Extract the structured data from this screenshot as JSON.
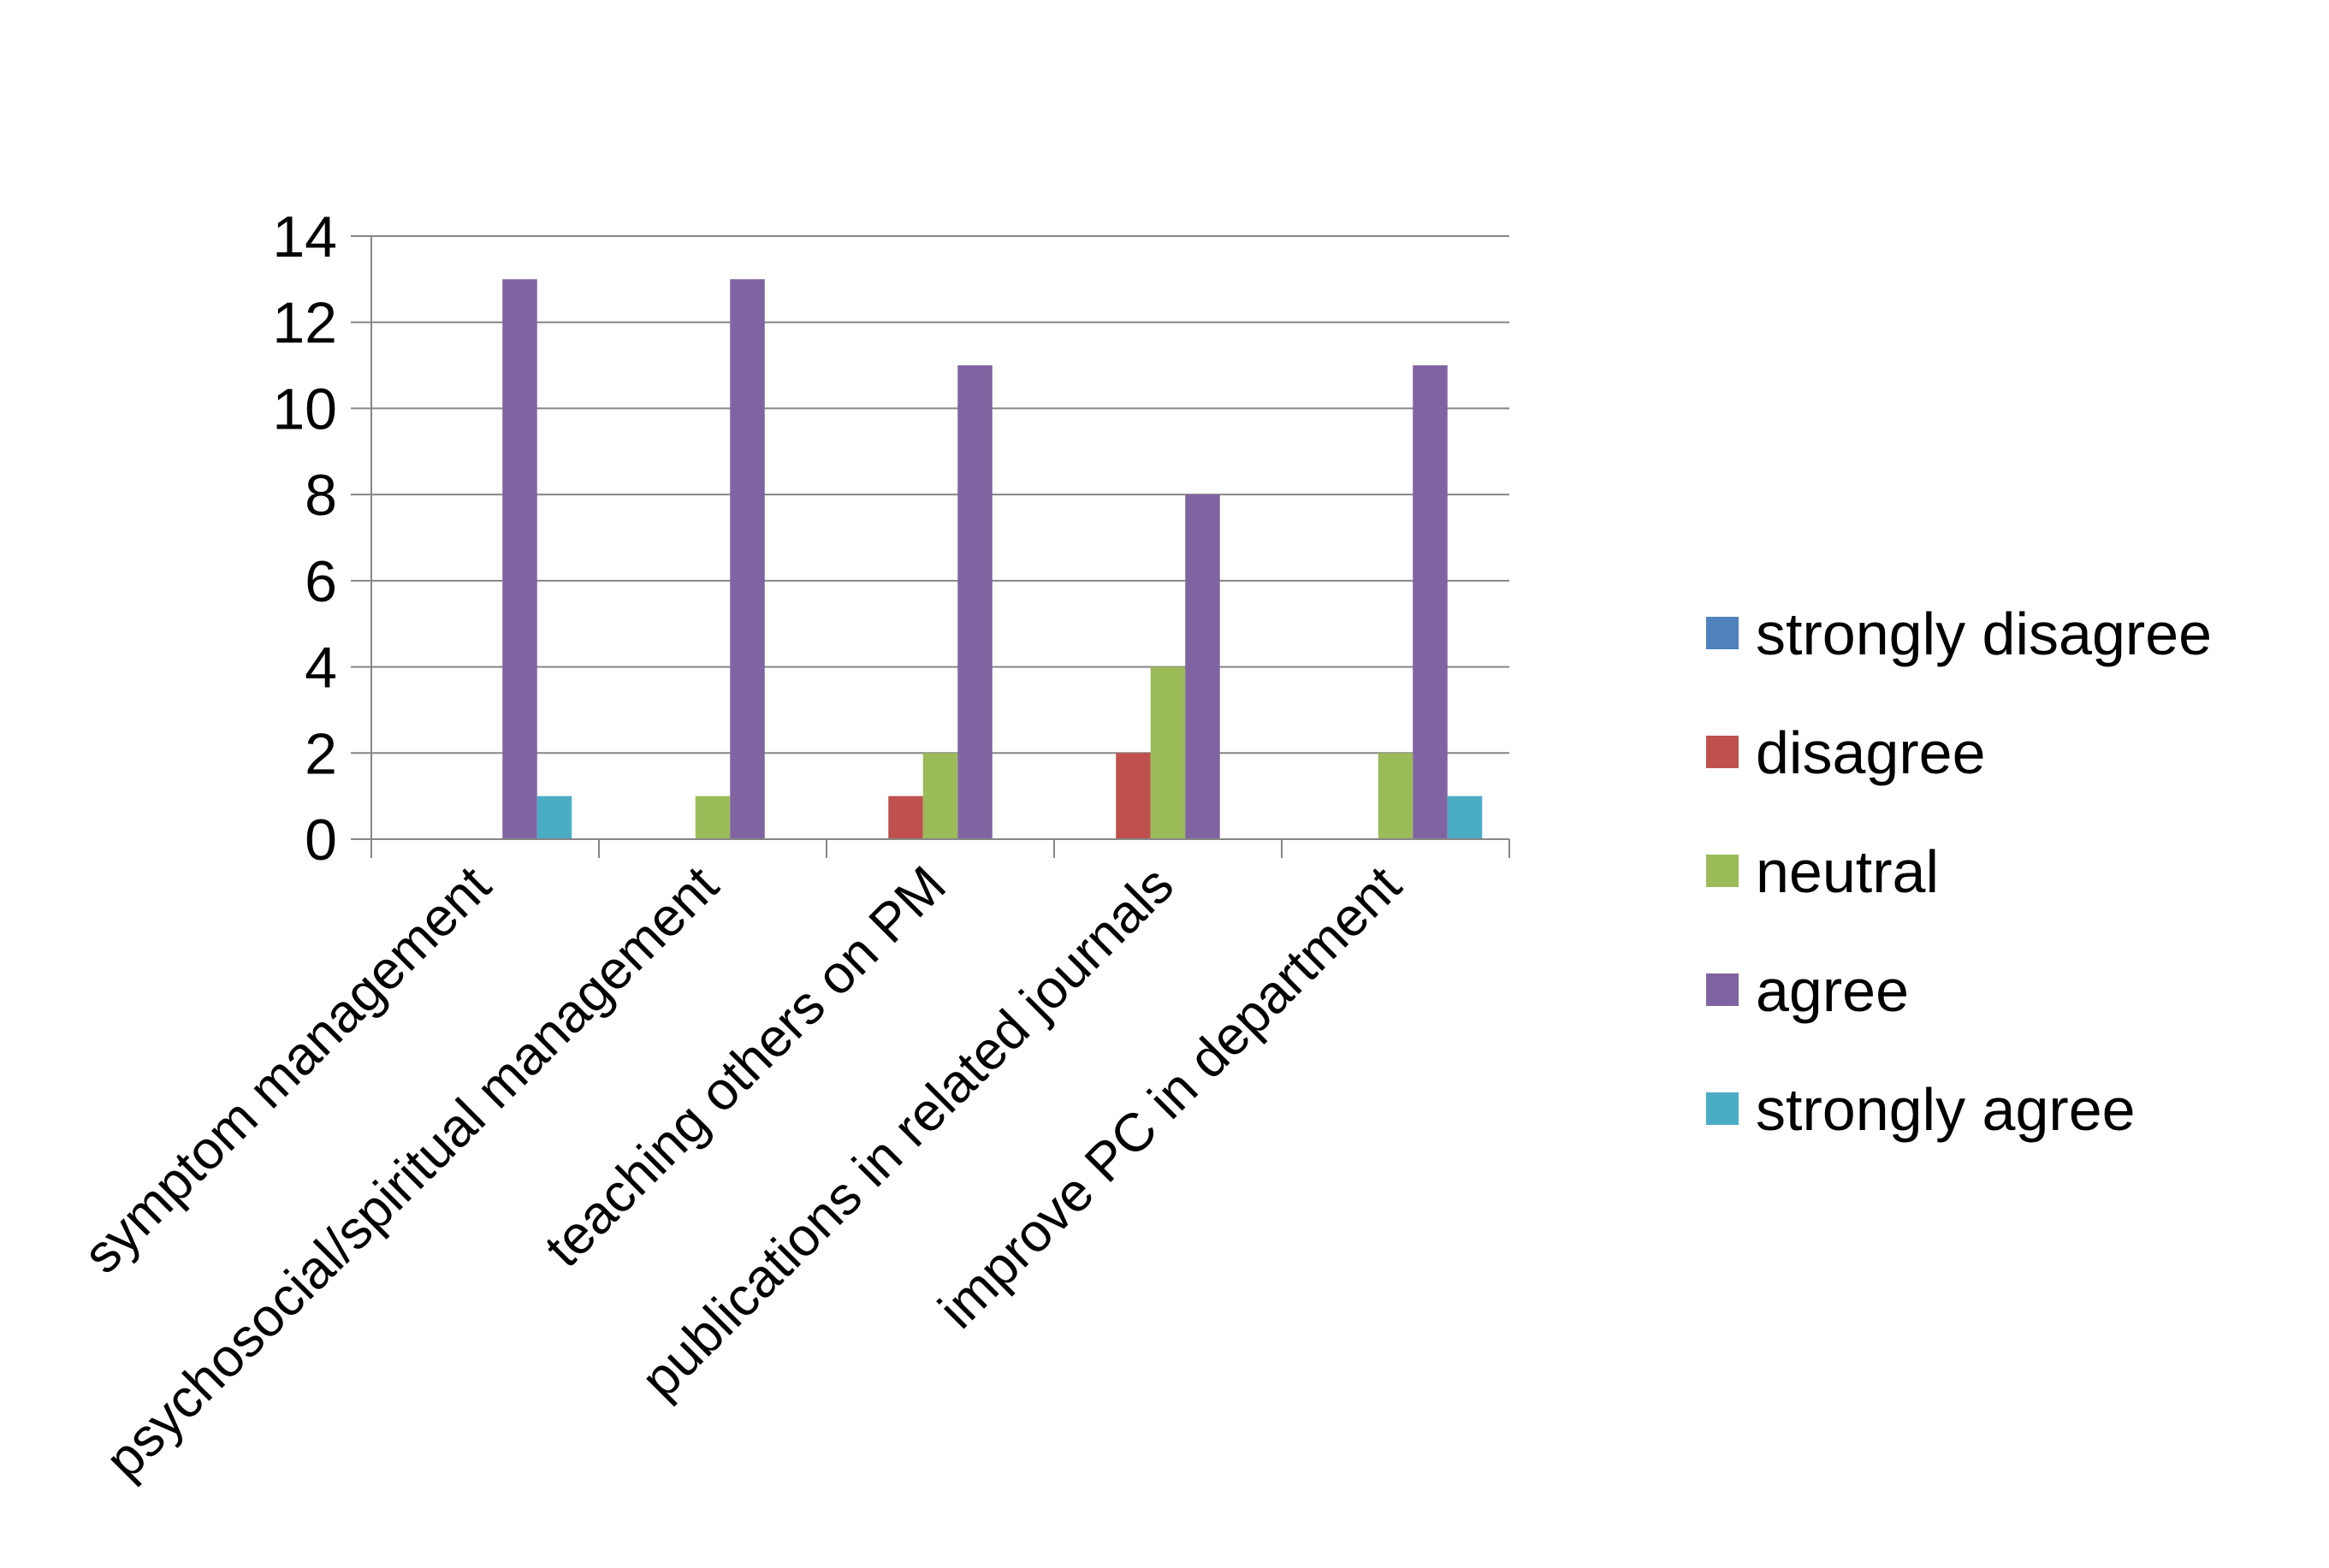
{
  "chart_data": {
    "type": "bar",
    "categories": [
      "symptom management",
      "psychosocial/spiritual management",
      "teaching others on PM",
      "publications in related journals",
      "improve PC in department"
    ],
    "series": [
      {
        "name": "strongly disagree",
        "color": "#4F81BD",
        "values": [
          0,
          0,
          0,
          0,
          0
        ]
      },
      {
        "name": "disagree",
        "color": "#C0504D",
        "values": [
          0,
          0,
          1,
          2,
          0
        ]
      },
      {
        "name": "neutral",
        "color": "#9BBB59",
        "values": [
          0,
          1,
          2,
          4,
          2
        ]
      },
      {
        "name": "agree",
        "color": "#8064A2",
        "values": [
          13,
          13,
          11,
          8,
          11
        ]
      },
      {
        "name": "strongly agree",
        "color": "#4BACC6",
        "values": [
          1,
          0,
          0,
          0,
          1
        ]
      }
    ],
    "ylim": [
      0,
      14
    ],
    "yticks": [
      0,
      2,
      4,
      6,
      8,
      10,
      12,
      14
    ],
    "grid": true,
    "legend_position": "right"
  }
}
